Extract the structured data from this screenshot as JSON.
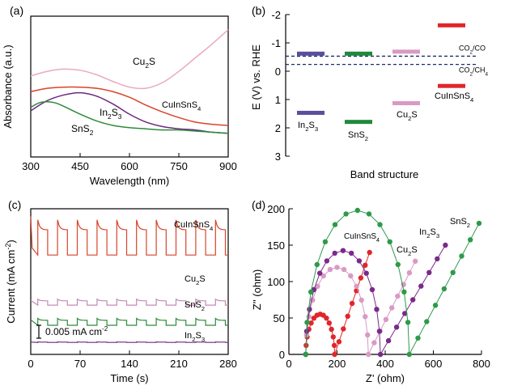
{
  "chart_data": [
    {
      "panel": "(a)",
      "type": "line",
      "xlabel": "Wavelength (nm)",
      "ylabel": "Absorbance (a.u.)",
      "xlim": [
        300,
        900
      ],
      "xticks": [
        "300",
        "450",
        "600",
        "750",
        "900"
      ],
      "series": [
        {
          "name": "Cu2S",
          "label_main": "Cu",
          "label_sub": "2",
          "label_tail": "S",
          "color": "#e8aabe",
          "x": [
            300,
            350,
            400,
            450,
            500,
            550,
            600,
            650,
            700,
            750,
            800,
            850,
            900
          ],
          "y": [
            0.72,
            0.76,
            0.78,
            0.77,
            0.73,
            0.67,
            0.62,
            0.61,
            0.66,
            0.76,
            0.88,
            1.0,
            1.13
          ]
        },
        {
          "name": "CuInSnS4",
          "label_main": "CuInSnS",
          "label_sub": "4",
          "label_tail": "",
          "color": "#d9442a",
          "x": [
            300,
            350,
            400,
            450,
            500,
            550,
            600,
            650,
            700,
            750,
            800,
            850,
            900
          ],
          "y": [
            0.58,
            0.61,
            0.62,
            0.62,
            0.61,
            0.58,
            0.53,
            0.46,
            0.4,
            0.35,
            0.31,
            0.29,
            0.28
          ]
        },
        {
          "name": "In2S3",
          "label_main": "In",
          "label_sub": "2",
          "label_tail": "S",
          "label_sub2": "3",
          "color": "#6a2a80",
          "x": [
            300,
            350,
            400,
            450,
            500,
            550,
            600,
            650,
            700,
            750,
            800,
            850,
            900
          ],
          "y": [
            0.41,
            0.5,
            0.55,
            0.57,
            0.54,
            0.47,
            0.38,
            0.31,
            0.27,
            0.25,
            0.24,
            0.22,
            0.21
          ]
        },
        {
          "name": "SnS2",
          "label_main": "SnS",
          "label_sub": "2",
          "label_tail": "",
          "color": "#2e8b3c",
          "x": [
            300,
            325,
            350,
            375,
            400,
            450,
            500,
            550,
            600,
            650,
            700,
            750,
            800,
            850,
            900
          ],
          "y": [
            0.44,
            0.48,
            0.49,
            0.48,
            0.45,
            0.38,
            0.32,
            0.28,
            0.26,
            0.25,
            0.24,
            0.24,
            0.23,
            0.22,
            0.21
          ]
        }
      ]
    },
    {
      "panel": "(b)",
      "type": "bar",
      "xlabel": "Band structure",
      "ylabel": "E (V) vs. RHE",
      "ylim": [
        -2,
        3
      ],
      "yticks": [
        "-2",
        "-1",
        "0",
        "1",
        "2",
        "3"
      ],
      "materials": [
        {
          "name": "In2S3",
          "label_main": "In",
          "label_sub": "2",
          "label_tail": "S",
          "label_sub2": "3",
          "cb": -0.62,
          "vb": 1.47,
          "color": "#5a4f9c"
        },
        {
          "name": "SnS2",
          "label_main": "SnS",
          "label_sub": "2",
          "label_tail": "",
          "cb": -0.62,
          "vb": 1.79,
          "color": "#1e8a3a"
        },
        {
          "name": "Cu2S",
          "label_main": "Cu",
          "label_sub": "2",
          "label_tail": "S",
          "cb": -0.69,
          "vb": 1.13,
          "color": "#d99ac4"
        },
        {
          "name": "CuInSnS4",
          "label_main": "CuInSnS",
          "label_sub": "4",
          "label_tail": "",
          "cb": -1.62,
          "vb": 0.52,
          "color": "#e0262a"
        }
      ],
      "references": [
        {
          "name": "CO2/CO",
          "label_main": "CO",
          "label_sub": "2",
          "label_tail": "/CO",
          "value": -0.53
        },
        {
          "name": "CO2/CH4",
          "label_main": "CO",
          "label_sub": "2",
          "label_tail": "/CH",
          "label_sub2": "4",
          "value": -0.24
        }
      ]
    },
    {
      "panel": "(c)",
      "type": "line",
      "xlabel": "Time (s)",
      "ylabel_main": "Current  (mA cm",
      "ylabel_sup": "-2",
      "ylabel_tail": ")",
      "xlim": [
        0,
        280
      ],
      "xticks": [
        "0",
        "70",
        "140",
        "210",
        "280"
      ],
      "scale_bar": "0.005 mA cm",
      "scale_bar_sup": "-2",
      "series": [
        {
          "name": "CuInSnS4",
          "label_main": "CuInSnS",
          "label_sub": "4",
          "label_tail": "",
          "color": "#d9442a",
          "baseline": 0.0212,
          "on_step": 0.0082,
          "period": 28,
          "first_on": 10
        },
        {
          "name": "Cu2S",
          "label_main": "Cu",
          "label_sub": "2",
          "label_tail": "S",
          "color": "#c48ab6",
          "baseline": 0.0095,
          "on_step": 0.0014,
          "period": 28,
          "first_on": 10
        },
        {
          "name": "SnS2",
          "label_main": "SnS",
          "label_sub": "2",
          "label_tail": "",
          "color": "#2e8b3c",
          "baseline": 0.0048,
          "on_step": 0.0016,
          "period": 28,
          "first_on": 10
        },
        {
          "name": "In2S3",
          "label_main": "In",
          "label_sub": "2",
          "label_tail": "S",
          "label_sub2": "3",
          "color": "#6a2a80",
          "baseline": 0.0008,
          "on_step": 0.0001,
          "period": 28,
          "first_on": 10
        }
      ]
    },
    {
      "panel": "(d)",
      "type": "scatter",
      "xlabel": "Z' (ohm)",
      "ylabel": "Z'' (ohm)",
      "xlim": [
        0,
        800
      ],
      "ylim": [
        0,
        200
      ],
      "xticks": [
        "0",
        "200",
        "400",
        "600",
        "800"
      ],
      "yticks": [
        "0",
        "50",
        "100",
        "150",
        "200"
      ],
      "series": [
        {
          "name": "CuInSnS4",
          "label_main": "CuInSnS",
          "label_sub": "4",
          "label_tail": "",
          "color": "#e0262a",
          "r0": 70,
          "rct": 120,
          "warburg_end": [
            335,
            140
          ]
        },
        {
          "name": "Cu2S",
          "label_main": "Cu",
          "label_sub": "2",
          "label_tail": "S",
          "color": "#d99ac4",
          "r0": 70,
          "rct": 260,
          "warburg_end": [
            525,
            128
          ]
        },
        {
          "name": "In2S3",
          "label_main": "In",
          "label_sub": "2",
          "label_tail": "S",
          "label_sub2": "3",
          "color": "#7a2a8a",
          "r0": 70,
          "rct": 310,
          "warburg_end": [
            650,
            150
          ]
        },
        {
          "name": "SnS2",
          "label_main": "SnS",
          "label_sub": "2",
          "label_tail": "",
          "color": "#2e9a4a",
          "r0": 70,
          "rct": 430,
          "warburg_end": [
            790,
            180
          ]
        }
      ]
    }
  ]
}
